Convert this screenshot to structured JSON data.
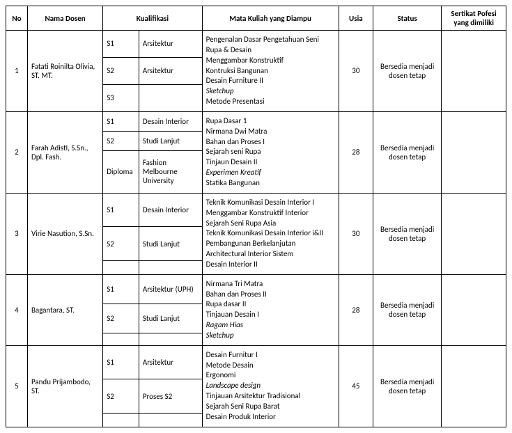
{
  "headers": {
    "no": "No",
    "nama": "Nama Dosen",
    "kualifikasi": "Kualifikasi",
    "matakuliah": "Mata Kuliah yang Diampu",
    "usia": "Usia",
    "status": "Status",
    "sertifikat": "Sertikat Pofesi yang dimiliki"
  },
  "rows": [
    {
      "no": "1",
      "nama": "Fatati Roinilta Olivia, ST. MT.",
      "kual": [
        {
          "level": "S1",
          "field": "Arsitektur"
        },
        {
          "level": "S2",
          "field": "Arsitektur"
        },
        {
          "level": "S3",
          "field": ""
        }
      ],
      "courses": [
        {
          "t": "Pengenalan Dasar Pengetahuan Seni Rupa  & Desain",
          "i": false
        },
        {
          "t": "Menggambar Konstruktif",
          "i": false
        },
        {
          "t": "Kontruksi Bangunan",
          "i": false
        },
        {
          "t": "Desain Furniture II",
          "i": false
        },
        {
          "t": "Sketchup",
          "i": true
        },
        {
          "t": "Metode Presentasi",
          "i": false
        }
      ],
      "usia": "30",
      "status": "Bersedia menjadi dosen tetap",
      "sert": ""
    },
    {
      "no": "2",
      "nama": "Farah Adisti, S.Sn., Dpl. Fash.",
      "kual": [
        {
          "level": "S1",
          "field": "Desain Interior"
        },
        {
          "level": "S2",
          "field": "Studi Lanjut"
        },
        {
          "level": "Diploma",
          "field": "Fashion Melbourne University"
        }
      ],
      "courses": [
        {
          "t": "Rupa Dasar 1",
          "i": false
        },
        {
          "t": "Nirmana Dwi Matra",
          "i": false
        },
        {
          "t": "Bahan dan Proses I",
          "i": false
        },
        {
          "t": "Sejarah seni Rupa",
          "i": false
        },
        {
          "t": "Tinjaun Desain II",
          "i": false
        },
        {
          "t": "Experimen Kreatif",
          "i": true
        },
        {
          "t": "Statika Bangunan",
          "i": false
        }
      ],
      "usia": "28",
      "status": "Bersedia menjadi dosen tetap",
      "sert": ""
    },
    {
      "no": "3",
      "nama": "Virie Nasution, S.Sn.",
      "kual": [
        {
          "level": "S1",
          "field": "Desain Interior"
        },
        {
          "level": "S2",
          "field": "Studi Lanjut"
        },
        {
          "level": "",
          "field": ""
        }
      ],
      "courses": [
        {
          "t": "Teknik Komunikasi Desain Interior I",
          "i": false
        },
        {
          "t": "Menggambar Konstruktif Interior",
          "i": false
        },
        {
          "t": "Sejarah Seni Rupa Asia",
          "i": false
        },
        {
          "t": "Teknik Komunikasi Desain Interior i&II",
          "i": false
        },
        {
          "t": "Pembangunan Berkelanjutan",
          "i": false
        },
        {
          "t": "Architectural Interior Sistem",
          "i": false
        },
        {
          "t": "Desain Interior II",
          "i": false
        }
      ],
      "usia": "30",
      "status": "Bersedia menjadi dosen tetap",
      "sert": ""
    },
    {
      "no": "4",
      "nama": "Bagantara, ST.",
      "kual": [
        {
          "level": "S1",
          "field": "Arsitektur (UPH)"
        },
        {
          "level": "S2",
          "field": "Studi Lanjut"
        },
        {
          "level": "",
          "field": ""
        }
      ],
      "courses": [
        {
          "t": "Nirmana Tri Matra",
          "i": false
        },
        {
          "t": "Bahan dan Proses II",
          "i": false
        },
        {
          "t": "Rupa dasar II",
          "i": false
        },
        {
          "t": "Tinjauan Desain I",
          "i": false
        },
        {
          "t": "Ragam Hias",
          "i": true
        },
        {
          "t": "Sketchup",
          "i": true
        }
      ],
      "usia": "28",
      "status": "Bersedia menjadi dosen tetap",
      "sert": ""
    },
    {
      "no": "5",
      "nama": "Pandu Prijambodo, ST.",
      "kual": [
        {
          "level": "S1",
          "field": "Arsitektur"
        },
        {
          "level": "S2",
          "field": "Proses S2"
        },
        {
          "level": "",
          "field": ""
        }
      ],
      "courses": [
        {
          "t": "Desain Furnitur I",
          "i": false
        },
        {
          "t": "Metode Desain",
          "i": false
        },
        {
          "t": "Ergonomi",
          "i": false
        },
        {
          "t": "Landscape design",
          "i": true
        },
        {
          "t": "Tinjauan Arsitektur Tradisional",
          "i": false
        },
        {
          "t": "Sejarah Seni Rupa Barat",
          "i": false
        },
        {
          "t": "Desain Produk Interior",
          "i": false
        }
      ],
      "usia": "45",
      "status": "Bersedia menjadi dosen tetap",
      "sert": ""
    }
  ]
}
